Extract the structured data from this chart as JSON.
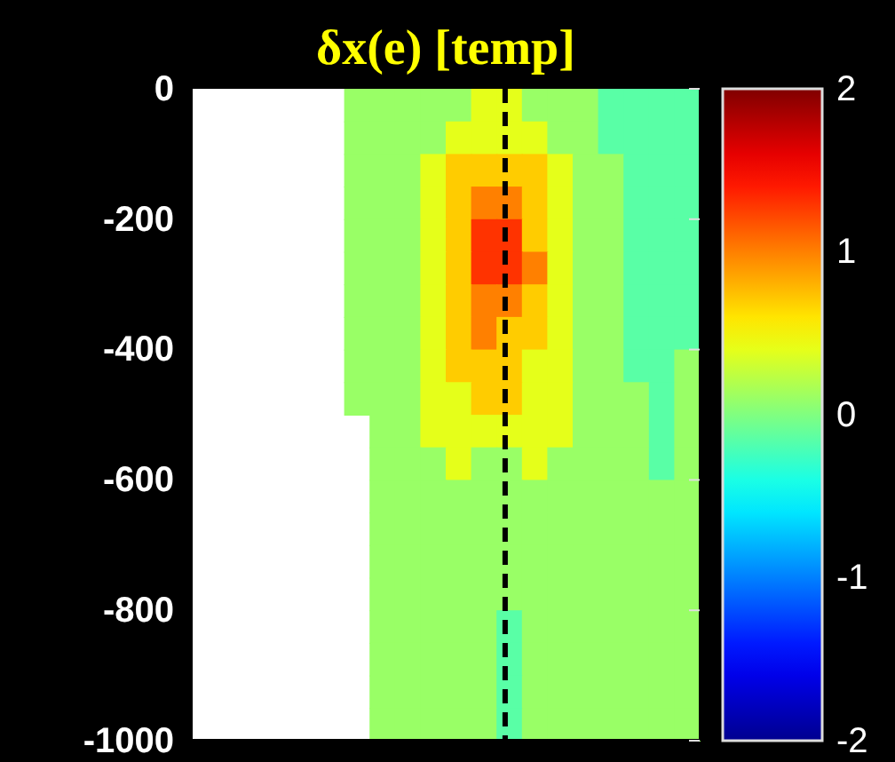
{
  "chart_data": {
    "type": "heatmap",
    "title": "δx(e) [temp]",
    "categories": [
      null,
      null,
      null,
      null,
      null,
      null,
      null,
      null,
      null,
      null,
      null,
      null,
      null,
      null,
      null,
      null,
      null,
      null,
      null,
      null
    ],
    "ylim": [
      -1000,
      0
    ],
    "yticks": [
      0,
      -200,
      -400,
      -600,
      -800,
      -1000
    ],
    "tick_labels": "y",
    "cells": [
      [
        null,
        null,
        null,
        null,
        null,
        null,
        0.1,
        0.1,
        0.1,
        0.1,
        0.1,
        0.4,
        0.4,
        0.1,
        0.1,
        0.1,
        -0.15,
        -0.15,
        -0.15,
        -0.15
      ],
      [
        null,
        null,
        null,
        null,
        null,
        null,
        0.1,
        0.1,
        0.1,
        0.1,
        0.4,
        0.4,
        0.4,
        0.4,
        0.1,
        0.1,
        -0.15,
        -0.15,
        -0.15,
        -0.15
      ],
      [
        null,
        null,
        null,
        null,
        null,
        null,
        0.1,
        0.1,
        0.1,
        0.4,
        0.7,
        0.7,
        0.7,
        0.7,
        0.4,
        0.1,
        0.1,
        -0.15,
        -0.15,
        -0.15
      ],
      [
        null,
        null,
        null,
        null,
        null,
        null,
        0.1,
        0.1,
        0.1,
        0.4,
        0.7,
        1.0,
        1.0,
        0.7,
        0.4,
        0.1,
        0.1,
        -0.15,
        -0.15,
        -0.15
      ],
      [
        null,
        null,
        null,
        null,
        null,
        null,
        0.1,
        0.1,
        0.1,
        0.4,
        0.7,
        1.3,
        1.3,
        0.7,
        0.4,
        0.1,
        0.1,
        -0.15,
        -0.15,
        -0.15
      ],
      [
        null,
        null,
        null,
        null,
        null,
        null,
        0.1,
        0.1,
        0.1,
        0.4,
        0.7,
        1.3,
        1.3,
        1.0,
        0.4,
        0.1,
        0.1,
        -0.15,
        -0.15,
        -0.15
      ],
      [
        null,
        null,
        null,
        null,
        null,
        null,
        0.1,
        0.1,
        0.1,
        0.4,
        0.7,
        1.0,
        1.0,
        0.7,
        0.4,
        0.1,
        0.1,
        -0.15,
        -0.15,
        -0.15
      ],
      [
        null,
        null,
        null,
        null,
        null,
        null,
        0.1,
        0.1,
        0.1,
        0.4,
        0.7,
        1.0,
        0.7,
        0.7,
        0.4,
        0.1,
        0.1,
        -0.15,
        -0.15,
        -0.15
      ],
      [
        null,
        null,
        null,
        null,
        null,
        null,
        0.1,
        0.1,
        0.1,
        0.4,
        0.7,
        0.7,
        0.7,
        0.4,
        0.4,
        0.1,
        0.1,
        -0.15,
        -0.15,
        0.1
      ],
      [
        null,
        null,
        null,
        null,
        null,
        null,
        0.1,
        0.1,
        0.1,
        0.4,
        0.4,
        0.7,
        0.7,
        0.4,
        0.4,
        0.1,
        0.1,
        0.1,
        -0.15,
        0.1
      ],
      [
        null,
        null,
        null,
        null,
        null,
        null,
        null,
        0.1,
        0.1,
        0.4,
        0.4,
        0.4,
        0.4,
        0.4,
        0.4,
        0.1,
        0.1,
        0.1,
        -0.15,
        0.1
      ],
      [
        null,
        null,
        null,
        null,
        null,
        null,
        null,
        0.1,
        0.1,
        0.1,
        0.4,
        0.1,
        0.1,
        0.4,
        0.1,
        0.1,
        0.1,
        0.1,
        -0.15,
        0.1
      ],
      [
        null,
        null,
        null,
        null,
        null,
        null,
        null,
        0.1,
        0.1,
        0.1,
        0.1,
        0.1,
        0.1,
        0.1,
        0.1,
        0.1,
        0.1,
        0.1,
        0.1,
        0.1
      ],
      [
        null,
        null,
        null,
        null,
        null,
        null,
        null,
        0.1,
        0.1,
        0.1,
        0.1,
        0.1,
        0.1,
        0.1,
        0.1,
        0.1,
        0.1,
        0.1,
        0.1,
        0.1
      ],
      [
        null,
        null,
        null,
        null,
        null,
        null,
        null,
        0.1,
        0.1,
        0.1,
        0.1,
        0.1,
        0.1,
        0.1,
        0.1,
        0.1,
        0.1,
        0.1,
        0.1,
        0.1
      ],
      [
        null,
        null,
        null,
        null,
        null,
        null,
        null,
        0.1,
        0.1,
        0.1,
        0.1,
        0.1,
        0.1,
        0.1,
        0.1,
        0.1,
        0.1,
        0.1,
        0.1,
        0.1
      ],
      [
        null,
        null,
        null,
        null,
        null,
        null,
        null,
        0.1,
        0.1,
        0.1,
        0.1,
        0.1,
        -0.15,
        0.1,
        0.1,
        0.1,
        0.1,
        0.1,
        0.1,
        0.1
      ],
      [
        null,
        null,
        null,
        null,
        null,
        null,
        null,
        0.1,
        0.1,
        0.1,
        0.1,
        0.1,
        -0.15,
        0.1,
        0.1,
        0.1,
        0.1,
        0.1,
        0.1,
        0.1
      ],
      [
        null,
        null,
        null,
        null,
        null,
        null,
        null,
        0.1,
        0.1,
        0.1,
        0.1,
        0.1,
        -0.15,
        0.1,
        0.1,
        0.1,
        0.1,
        0.1,
        0.1,
        0.1
      ],
      [
        null,
        null,
        null,
        null,
        null,
        null,
        null,
        0.1,
        0.1,
        0.1,
        0.1,
        0.1,
        -0.15,
        0.1,
        0.1,
        0.1,
        0.1,
        0.1,
        0.1,
        0.1
      ]
    ],
    "clim": [
      -2,
      2
    ],
    "cticks": [
      2,
      1,
      0,
      -1,
      -2
    ]
  }
}
